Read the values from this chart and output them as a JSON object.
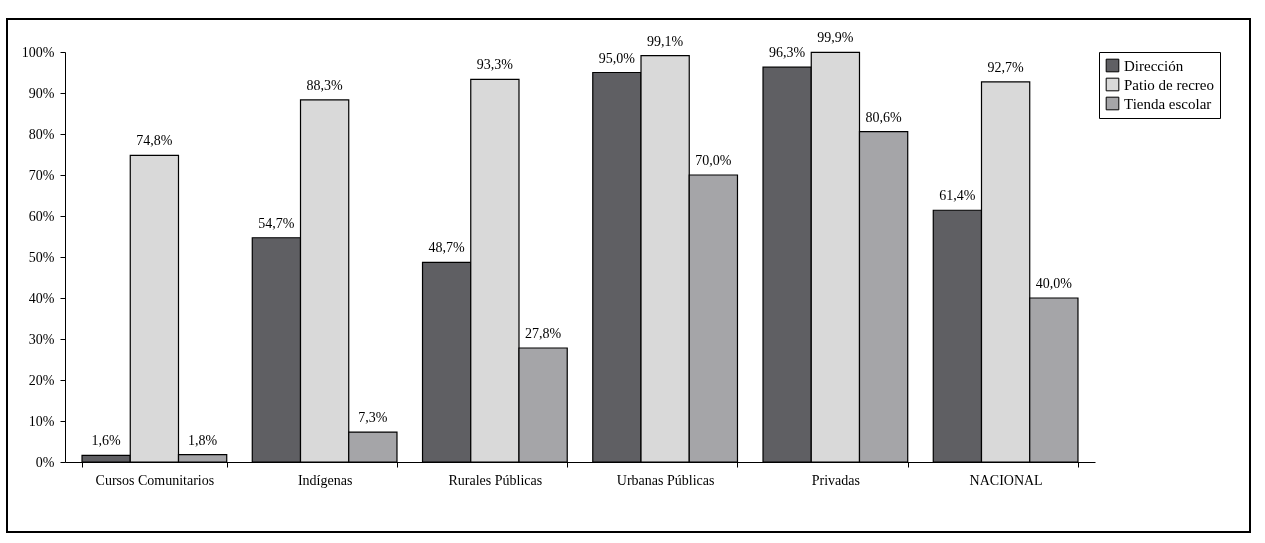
{
  "chart_data": {
    "type": "bar",
    "categories": [
      "Cursos Comunitarios",
      "Indígenas",
      "Rurales Públicas",
      "Urbanas Públicas",
      "Privadas",
      "NACIONAL"
    ],
    "series": [
      {
        "name": "Dirección",
        "color": "#5f5f63",
        "values": [
          1.6,
          54.7,
          48.7,
          95.0,
          96.3,
          61.4
        ],
        "value_labels": [
          "1,6%",
          "54,7%",
          "48,7%",
          "95,0%",
          "96,3%",
          "61,4%"
        ]
      },
      {
        "name": "Patio de recreo",
        "color": "#d9d9d9",
        "values": [
          74.8,
          88.3,
          93.3,
          99.1,
          99.9,
          92.7
        ],
        "value_labels": [
          "74,8%",
          "88,3%",
          "93,3%",
          "99,1%",
          "99,9%",
          "92,7%"
        ]
      },
      {
        "name": "Tienda escolar",
        "color": "#a5a5a8",
        "values": [
          1.8,
          7.3,
          27.8,
          70.0,
          80.6,
          40.0
        ],
        "value_labels": [
          "1,8%",
          "7,3%",
          "27,8%",
          "70,0%",
          "80,6%",
          "40,0%"
        ]
      }
    ],
    "ylim": [
      0,
      100
    ],
    "yticks": [
      {
        "value": 0,
        "label": "0%"
      },
      {
        "value": 10,
        "label": "10%"
      },
      {
        "value": 20,
        "label": "20%"
      },
      {
        "value": 30,
        "label": "30%"
      },
      {
        "value": 40,
        "label": "40%"
      },
      {
        "value": 50,
        "label": "50%"
      },
      {
        "value": 60,
        "label": "60%"
      },
      {
        "value": 70,
        "label": "70%"
      },
      {
        "value": 80,
        "label": "80%"
      },
      {
        "value": 90,
        "label": "90%"
      },
      {
        "value": 100,
        "label": "100%"
      }
    ],
    "grid": false,
    "legend": "right"
  }
}
